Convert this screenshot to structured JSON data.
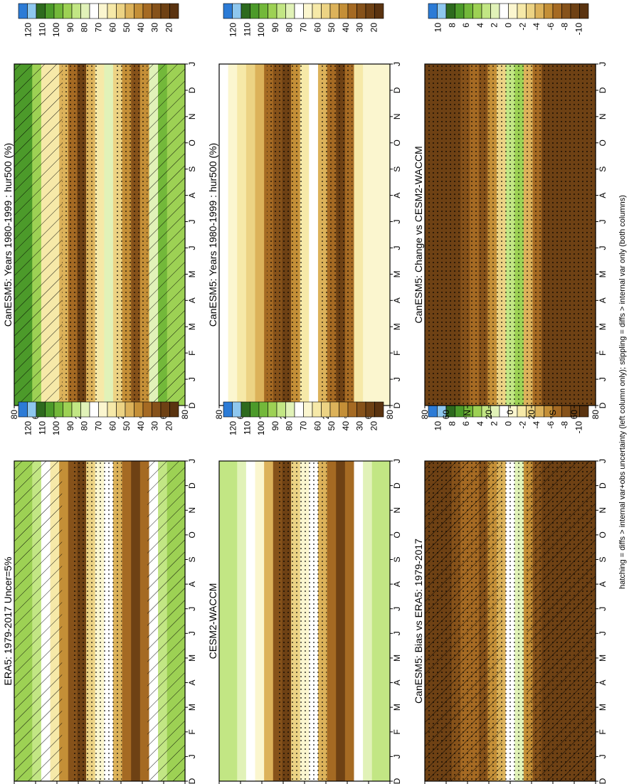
{
  "footer": "hatching = diffs > internal var+obs uncertainty (left column only); stippling = diffs > internal var only (both columns)",
  "chart_data": [
    {
      "id": "p1",
      "type": "heatmap",
      "title": "CanESM5: Years 1980-1999 : hur500 (%)",
      "x": [
        "D",
        "J",
        "F",
        "M",
        "A",
        "M",
        "J",
        "J",
        "A",
        "S",
        "O",
        "N",
        "D",
        "J"
      ],
      "y_ticks": [
        "80",
        "60",
        "°N",
        "20",
        "0",
        "20",
        "°S",
        "60",
        "80"
      ],
      "colorbar": [
        "120",
        "110",
        "100",
        "90",
        "80",
        "70",
        "60",
        "50",
        "40",
        "30",
        "20"
      ],
      "colors": [
        "#2c7bd6",
        "#8ec7ee",
        "#2d6a1e",
        "#4c9a2a",
        "#73b83a",
        "#9dd154",
        "#c2e684",
        "#e1f2b8",
        "#ffffff",
        "#fbf6cf",
        "#f6e9a8",
        "#ecd384",
        "#dcb25a",
        "#c48f37",
        "#a56a23",
        "#86521a",
        "#6e4114",
        "#5a3310"
      ],
      "zones": [
        3,
        3,
        5,
        10,
        10,
        12,
        14,
        16,
        12,
        10,
        7,
        11,
        13,
        15,
        13,
        7,
        4,
        5,
        5
      ],
      "hatch": "left-right",
      "stipple": "polar"
    },
    {
      "id": "p2",
      "type": "heatmap",
      "title": "CanESM5: Years 1980-1999 : hur500 (%)",
      "x": [
        "D",
        "J",
        "F",
        "M",
        "A",
        "M",
        "J",
        "J",
        "A",
        "S",
        "O",
        "N",
        "D",
        "J"
      ],
      "y_ticks": [
        "80",
        "60",
        "°N",
        "20",
        "0",
        "20",
        "°S",
        "60",
        "80"
      ],
      "colorbar": [
        "120",
        "110",
        "100",
        "90",
        "80",
        "70",
        "60",
        "50",
        "40",
        "30",
        "20"
      ],
      "colors": [
        "#2c7bd6",
        "#8ec7ee",
        "#2d6a1e",
        "#4c9a2a",
        "#73b83a",
        "#9dd154",
        "#c2e684",
        "#e1f2b8",
        "#ffffff",
        "#fbf6cf",
        "#f6e9a8",
        "#ecd384",
        "#dcb25a",
        "#c48f37",
        "#a56a23",
        "#86521a",
        "#6e4114",
        "#5a3310"
      ],
      "zones": [
        8,
        9,
        10,
        11,
        12,
        14,
        15,
        16,
        13,
        10,
        8,
        12,
        14,
        16,
        14,
        10,
        9,
        9,
        9
      ],
      "hatch": "none",
      "stipple": "polar"
    },
    {
      "id": "p3",
      "type": "heatmap",
      "title": "ERA5: 1979-2017 Uncer=5%",
      "x": [
        "D",
        "J",
        "F",
        "M",
        "A",
        "M",
        "J",
        "J",
        "A",
        "S",
        "O",
        "N",
        "D",
        "J"
      ],
      "y_ticks": [
        "80",
        "60",
        "°N",
        "20",
        "0",
        "20",
        "°S",
        "60",
        "80"
      ],
      "colorbar": [
        "120",
        "110",
        "100",
        "90",
        "80",
        "70",
        "60",
        "50",
        "40",
        "30",
        "20"
      ],
      "colors": [
        "#2c7bd6",
        "#8ec7ee",
        "#2d6a1e",
        "#4c9a2a",
        "#73b83a",
        "#9dd154",
        "#c2e684",
        "#e1f2b8",
        "#ffffff",
        "#fbf6cf",
        "#f6e9a8",
        "#ecd384",
        "#dcb25a",
        "#c48f37",
        "#a56a23",
        "#86521a",
        "#6e4114",
        "#5a3310"
      ],
      "zones": [
        5,
        5,
        6,
        8,
        10,
        13,
        15,
        16,
        11,
        9,
        8,
        12,
        14,
        16,
        14,
        8,
        6,
        5,
        5
      ],
      "hatch": "left-right",
      "stipple": "mid"
    },
    {
      "id": "p4",
      "type": "heatmap",
      "title": "CESM2-WACCM",
      "x": [
        "D",
        "J",
        "F",
        "M",
        "A",
        "M",
        "J",
        "J",
        "A",
        "S",
        "O",
        "N",
        "D",
        "J"
      ],
      "y_ticks": [
        "80",
        "60",
        "°N",
        "20",
        "0",
        "20",
        "°S",
        "60",
        "80"
      ],
      "colorbar": [
        "120",
        "110",
        "100",
        "90",
        "80",
        "70",
        "60",
        "50",
        "40",
        "30",
        "20"
      ],
      "colors": [
        "#2c7bd6",
        "#8ec7ee",
        "#2d6a1e",
        "#4c9a2a",
        "#73b83a",
        "#9dd154",
        "#c2e684",
        "#e1f2b8",
        "#ffffff",
        "#fbf6cf",
        "#f6e9a8",
        "#ecd384",
        "#dcb25a",
        "#c48f37",
        "#a56a23",
        "#86521a",
        "#6e4114",
        "#5a3310"
      ],
      "zones": [
        6,
        6,
        7,
        8,
        9,
        12,
        15,
        16,
        11,
        9,
        8,
        12,
        14,
        16,
        14,
        8,
        7,
        6,
        6
      ],
      "hatch": "none",
      "stipple": "mid"
    },
    {
      "id": "p5",
      "type": "heatmap",
      "title": "CanESM5: Bias vs ERA5: 1979-2017",
      "x": [
        "D",
        "J",
        "F",
        "M",
        "A",
        "M",
        "J",
        "J",
        "A",
        "S",
        "O",
        "N",
        "D",
        "J"
      ],
      "y_ticks": [
        "80",
        "60",
        "°N",
        "20",
        "0",
        "20",
        "°S",
        "60",
        "80"
      ],
      "colorbar": [
        "10",
        "8",
        "6",
        "4",
        "2",
        "0",
        "-2",
        "-4",
        "-6",
        "-8",
        "-10"
      ],
      "colors": [
        "#2c7bd6",
        "#8ec7ee",
        "#2d6a1e",
        "#4c9a2a",
        "#73b83a",
        "#9dd154",
        "#c2e684",
        "#e1f2b8",
        "#ffffff",
        "#fbf6cf",
        "#f6e9a8",
        "#ecd384",
        "#dcb25a",
        "#c48f37",
        "#a56a23",
        "#86521a",
        "#6e4114",
        "#5a3310"
      ],
      "zones": [
        16,
        16,
        16,
        15,
        14,
        14,
        15,
        13,
        12,
        8,
        7,
        13,
        15,
        16,
        16,
        16,
        16,
        16,
        16
      ],
      "hatch": "full",
      "stipple": "all"
    },
    {
      "id": "p6",
      "type": "heatmap",
      "title": "CanESM5: Change vs CESM2-WACCM",
      "x": [
        "D",
        "J",
        "F",
        "M",
        "A",
        "M",
        "J",
        "J",
        "A",
        "S",
        "O",
        "N",
        "D",
        "J"
      ],
      "y_ticks": [
        "80",
        "60",
        "°N",
        "20",
        "0",
        "20",
        "°S",
        "60",
        "80"
      ],
      "colorbar": [
        "10",
        "8",
        "6",
        "4",
        "2",
        "0",
        "-2",
        "-4",
        "-6",
        "-8",
        "-10"
      ],
      "colors": [
        "#2c7bd6",
        "#8ec7ee",
        "#2d6a1e",
        "#4c9a2a",
        "#73b83a",
        "#9dd154",
        "#c2e684",
        "#e1f2b8",
        "#ffffff",
        "#fbf6cf",
        "#f6e9a8",
        "#ecd384",
        "#dcb25a",
        "#c48f37",
        "#a56a23",
        "#86521a",
        "#6e4114",
        "#5a3310"
      ],
      "zones": [
        16,
        16,
        16,
        16,
        15,
        14,
        15,
        13,
        11,
        6,
        5,
        12,
        14,
        16,
        16,
        16,
        16,
        16,
        16
      ],
      "hatch": "none",
      "stipple": "all"
    }
  ]
}
